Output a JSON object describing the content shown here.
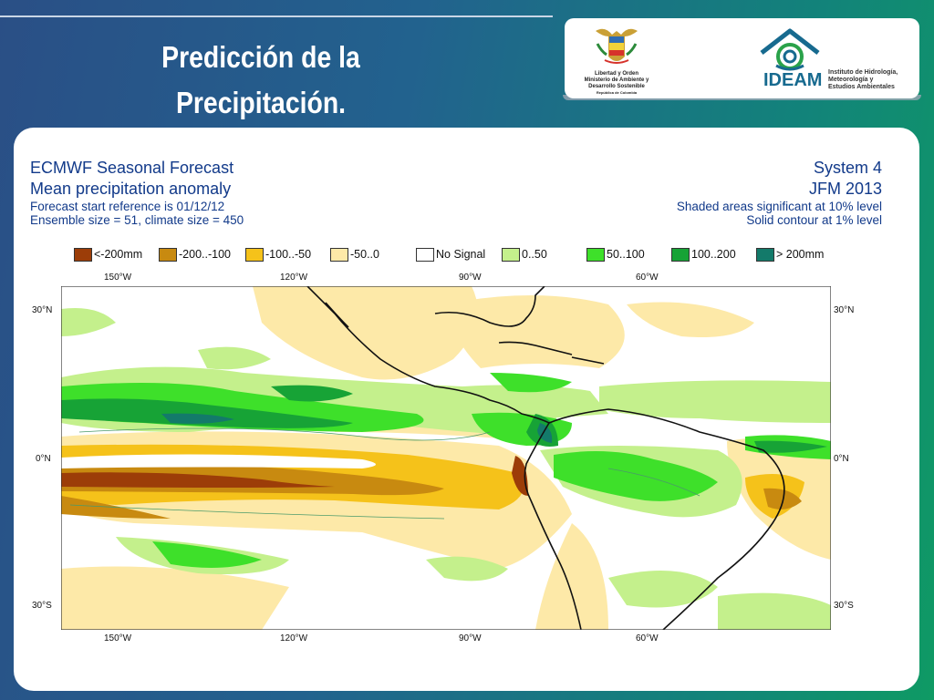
{
  "slide": {
    "title_line1": "Predicción de la",
    "title_line2": "Precipitación."
  },
  "logos": {
    "gov_lines": [
      "Libertad y Orden",
      "Ministerio de Ambiente y",
      "Desarrollo Sostenible",
      "República de Colombia"
    ],
    "ideam_name": "IDEAM",
    "ideam_lines": [
      "Instituto de Hidrología,",
      "Meteorología y",
      "Estudios Ambientales"
    ]
  },
  "forecast": {
    "title": "ECMWF Seasonal Forecast",
    "subtitle": "Mean precipitation anomaly",
    "start_ref": "Forecast start reference is 01/12/12",
    "ensemble": "Ensemble size = 51, climate size = 450",
    "system": "System 4",
    "season": "JFM 2013",
    "note1": "Shaded areas significant at 10% level",
    "note2": "Solid contour at 1% level"
  },
  "legend": [
    {
      "label": "<-200mm",
      "color": "#9c3d08"
    },
    {
      "label": "-200..-100",
      "color": "#c88a10"
    },
    {
      "label": "-100..-50",
      "color": "#f5c21a"
    },
    {
      "label": "-50..0",
      "color": "#fde9a8"
    },
    {
      "label": "No Signal",
      "color": "#ffffff"
    },
    {
      "label": "0..50",
      "color": "#c4f08c"
    },
    {
      "label": "50..100",
      "color": "#3ee02a"
    },
    {
      "label": "100..200",
      "color": "#17a336"
    },
    {
      "label": "> 200mm",
      "color": "#137a6a"
    }
  ],
  "map": {
    "lon_labels": [
      "150°W",
      "120°W",
      "90°W",
      "60°W"
    ],
    "lat_labels": [
      "30°N",
      "0°N",
      "30°S"
    ]
  }
}
